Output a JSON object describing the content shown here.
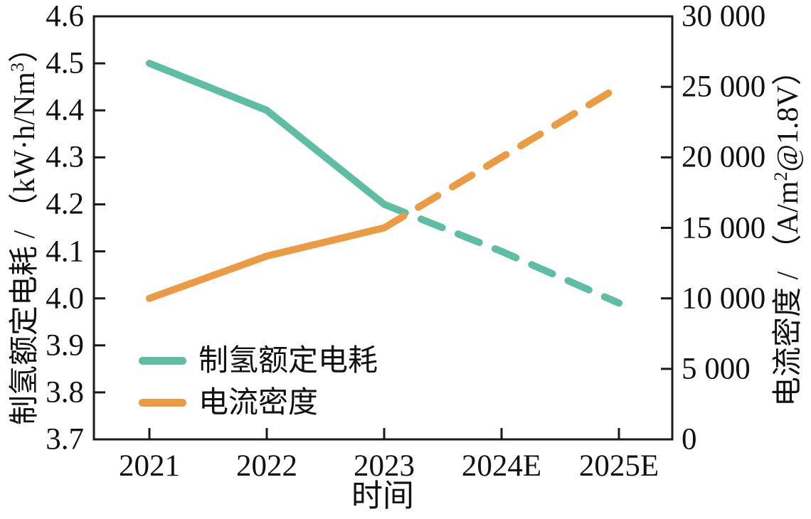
{
  "chart_data": {
    "type": "line",
    "title": "",
    "background": "#ffffff",
    "axis_color": "#1a1a1a",
    "x_axis": {
      "label": "时间",
      "categories": [
        "2021",
        "2022",
        "2023",
        "2024E",
        "2025E"
      ]
    },
    "left_axis": {
      "title_prefix": "制氢额定电耗 / （kW·h/Nm",
      "title_sup": "3",
      "title_suffix": "）",
      "min": 3.7,
      "max": 4.6,
      "tick_values": [
        4.6,
        4.5,
        4.4,
        4.3,
        4.2,
        4.1,
        4.0,
        3.9,
        3.8,
        3.7
      ],
      "tick_labels": [
        "4.6",
        "4.5",
        "4.4",
        "4.3",
        "4.2",
        "4.1",
        "4.0",
        "3.9",
        "3.8",
        "3.7"
      ]
    },
    "right_axis": {
      "title_prefix": "电流密度 / （A/m",
      "title_sup": "2",
      "title_suffix": "@1.8V）",
      "min": 0,
      "max": 30000,
      "tick_values": [
        30000,
        25000,
        20000,
        15000,
        10000,
        5000,
        0
      ],
      "tick_labels": [
        "30 000",
        "25 000",
        "20 000",
        "15 000",
        "10 000",
        "5 000",
        "0"
      ]
    },
    "series": [
      {
        "name": "制氢额定电耗",
        "axis": "left",
        "color": "#5ebda3",
        "values": [
          4.5,
          4.4,
          4.2,
          4.1,
          3.99
        ],
        "dashed_from_index": 2
      },
      {
        "name": "电流密度",
        "axis": "right",
        "color": "#ec9b45",
        "values": [
          10000,
          13000,
          15000,
          20000,
          25000
        ],
        "dashed_from_index": 2
      }
    ],
    "legend": {
      "position": "lower-left"
    }
  }
}
